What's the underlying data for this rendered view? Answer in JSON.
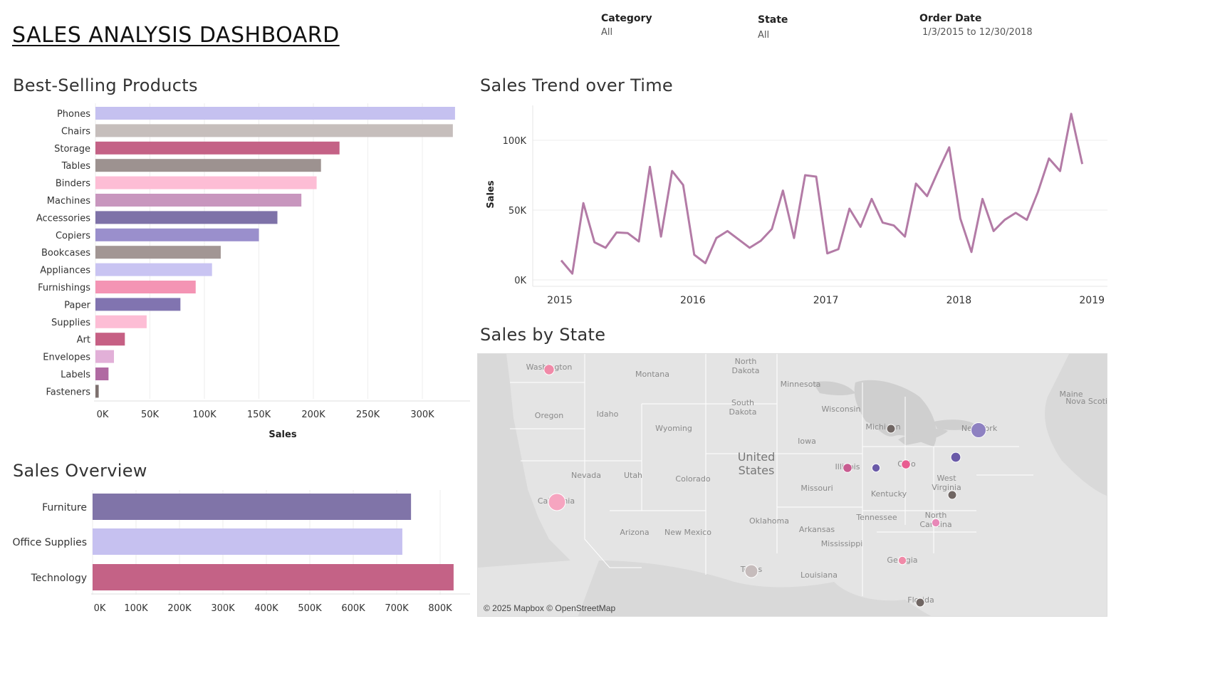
{
  "dashboard": {
    "title": "SALES ANALYSIS DASHBOARD"
  },
  "filters": [
    {
      "label": "Category",
      "value": "All"
    },
    {
      "label": "State",
      "value": "All"
    },
    {
      "label": "Order Date",
      "value": "1/3/2015 to 12/30/2018"
    }
  ],
  "products": {
    "title": "Best-Selling Products",
    "xlabel": "Sales"
  },
  "trend": {
    "title": "Sales Trend over Time",
    "ylabel": "Sales"
  },
  "overview": {
    "title": "Sales Overview"
  },
  "map": {
    "title": "Sales by State",
    "credit": "© 2025 Mapbox © OpenStreetMap",
    "country_label": "United States",
    "state_labels": [
      "Washington",
      "Montana",
      "North Dakota",
      "Minnesota",
      "South Dakota",
      "Oregon",
      "Idaho",
      "Wyoming",
      "Wisconsin",
      "Michigan",
      "New York",
      "Maine",
      "Nova Scotia",
      "Iowa",
      "Nevada",
      "Utah",
      "Colorado",
      "Illinois",
      "Ohio",
      "California",
      "Missouri",
      "Kentucky",
      "West Virginia",
      "Tennessee",
      "North Carolina",
      "Arizona",
      "New Mexico",
      "Oklahoma",
      "Arkansas",
      "Mississippi",
      "Georgia",
      "Texas",
      "Louisiana",
      "Florida"
    ],
    "points": [
      {
        "state": "California",
        "size": 3,
        "color": "#f6a5c0"
      },
      {
        "state": "New York",
        "size": 2.5,
        "color": "#8e81c1"
      },
      {
        "state": "Texas",
        "size": 2,
        "color": "#c6bcbc"
      },
      {
        "state": "Washington",
        "size": 1.4,
        "color": "#f08aa8"
      },
      {
        "state": "Pennsylvania",
        "size": 1.3,
        "color": "#6a5aa8"
      },
      {
        "state": "Michigan",
        "size": 1,
        "color": "#706663"
      },
      {
        "state": "Florida",
        "size": 1,
        "color": "#706663"
      },
      {
        "state": "Illinois",
        "size": 1.1,
        "color": "#c85c90"
      },
      {
        "state": "Ohio",
        "size": 1.1,
        "color": "#e85c90"
      },
      {
        "state": "Indiana",
        "size": 0.9,
        "color": "#6a5aa8"
      },
      {
        "state": "Virginia",
        "size": 1,
        "color": "#706663"
      },
      {
        "state": "North Carolina",
        "size": 0.9,
        "color": "#e888b8"
      },
      {
        "state": "Georgia",
        "size": 0.9,
        "color": "#f08aa8"
      }
    ]
  },
  "colors": {
    "accent_line": "#b37ba6",
    "gridline": "#eeeeee"
  },
  "chart_data": [
    {
      "type": "bar",
      "title": "Best-Selling Products",
      "orientation": "horizontal",
      "xlabel": "Sales",
      "xlim": [
        0,
        340000
      ],
      "x_ticks": [
        "0K",
        "50K",
        "100K",
        "150K",
        "200K",
        "250K",
        "300K"
      ],
      "categories": [
        "Phones",
        "Chairs",
        "Storage",
        "Tables",
        "Binders",
        "Machines",
        "Accessories",
        "Copiers",
        "Bookcases",
        "Appliances",
        "Furnishings",
        "Paper",
        "Supplies",
        "Art",
        "Envelopes",
        "Labels",
        "Fasteners"
      ],
      "values": [
        330000,
        328000,
        224000,
        207000,
        203000,
        189000,
        167000,
        150000,
        115000,
        107000,
        92000,
        78000,
        47000,
        27000,
        17000,
        12000,
        3000
      ],
      "colors": [
        "#c5c1f0",
        "#c6bebc",
        "#c46286",
        "#9d9290",
        "#fdbdd5",
        "#c896be",
        "#7e72a8",
        "#9a8fcc",
        "#a29694",
        "#c9c4f2",
        "#f494b4",
        "#8174b0",
        "#fdbdd5",
        "#c66084",
        "#e2b0d8",
        "#b06aa2",
        "#7d706e"
      ],
      "grid": true
    },
    {
      "type": "line",
      "title": "Sales Trend over Time",
      "ylabel": "Sales",
      "ylim": [
        0,
        120000
      ],
      "y_ticks": [
        "0K",
        "50K",
        "100K"
      ],
      "x_ticks": [
        "2015",
        "2016",
        "2017",
        "2018",
        "2019"
      ],
      "x_start": "2015-01",
      "series": [
        {
          "values": [
            14000,
            4500,
            55000,
            27000,
            23000,
            34000,
            33500,
            27500,
            81000,
            31000,
            78000,
            68000,
            18000,
            12000,
            30000,
            35000,
            29000,
            23000,
            28000,
            36500,
            64000,
            30000,
            75000,
            74000,
            19000,
            22000,
            51000,
            38000,
            58000,
            41000,
            39000,
            31000,
            69000,
            60000,
            78000,
            95000,
            44000,
            20000,
            58000,
            35000,
            43000,
            48000,
            43000,
            63000,
            87000,
            78000,
            119000,
            83000
          ],
          "color": "#b37ba6"
        }
      ],
      "grid": true
    },
    {
      "type": "bar",
      "title": "Sales Overview",
      "orientation": "horizontal",
      "xlim": [
        0,
        830000
      ],
      "x_ticks": [
        "0K",
        "100K",
        "200K",
        "300K",
        "400K",
        "500K",
        "600K",
        "700K",
        "800K"
      ],
      "categories": [
        "Furniture",
        "Office Supplies",
        "Technology"
      ],
      "values": [
        733000,
        713000,
        831000
      ],
      "colors": [
        "#8074a8",
        "#c6c1f0",
        "#c46286"
      ],
      "grid": true
    }
  ]
}
